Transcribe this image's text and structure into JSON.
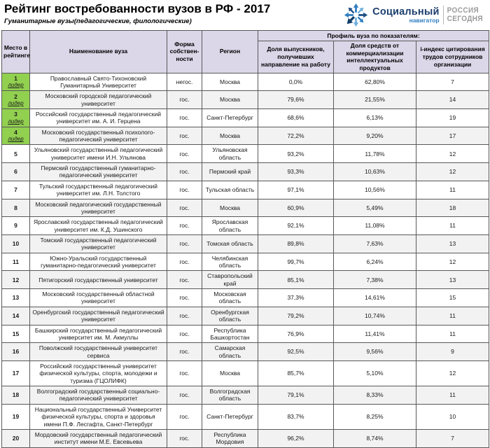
{
  "page": {
    "title": "Рейтинг востребованности вузов в РФ - 2017",
    "subtitle": "Гуманитарные вузы(педагогические, филологические)"
  },
  "logo": {
    "icon": "snowflake-arrows-icon",
    "brand_top": "Социальный",
    "brand_bottom": "навигатор",
    "agency_line1": "РОССИЯ",
    "agency_line2": "СЕГОДНЯ"
  },
  "colors": {
    "leader_green": "#92d050",
    "header_lavender": "#dbd6e8",
    "alt_row_gray": "#f2f2f2",
    "table_border": "#595959",
    "brand_navy": "#1c3e6e",
    "brand_blue": "#2e7dc0",
    "agency_gray": "#9b9b9b"
  },
  "table": {
    "headers": {
      "place": "Место в рейтинге",
      "name": "Наименование вуза",
      "ownership": "Форма собствен-ности",
      "region": "Регион",
      "profile_group": "Профиль вуза по показателям:",
      "metric1": "Доля выпускников, получивших направление на работу",
      "metric2": "Доля средств от коммерциализации интеллектуальных продуктов",
      "metric3": "i-индекс цитирования трудов сотрудников организации"
    },
    "leader_label": "лидер",
    "rows": [
      {
        "place": "1",
        "leader": true,
        "name": "Православный Свято-Тихоновский Гуманитарный Университет",
        "ownership": "негос.",
        "region": "Москва",
        "graduates_share": "0,0%",
        "commercialization_share": "62,80%",
        "i_index": "7"
      },
      {
        "place": "2",
        "leader": true,
        "name": "Московский городской педагогический университет",
        "ownership": "гос.",
        "region": "Москва",
        "graduates_share": "79,6%",
        "commercialization_share": "21,55%",
        "i_index": "14"
      },
      {
        "place": "3",
        "leader": true,
        "name": "Российский государственный педагогический университет им. А. И. Герцена",
        "ownership": "гос.",
        "region": "Санкт-Петербург",
        "graduates_share": "68,6%",
        "commercialization_share": "6,13%",
        "i_index": "19"
      },
      {
        "place": "4",
        "leader": true,
        "name": "Московский государственный психолого-педагогический университет",
        "ownership": "гос.",
        "region": "Москва",
        "graduates_share": "72,2%",
        "commercialization_share": "9,20%",
        "i_index": "17"
      },
      {
        "place": "5",
        "leader": false,
        "name": "Ульяновский государственный педагогический университет имени И.Н. Ульянова",
        "ownership": "гос.",
        "region": "Ульяновская область",
        "graduates_share": "93,2%",
        "commercialization_share": "11,78%",
        "i_index": "12"
      },
      {
        "place": "6",
        "leader": false,
        "name": "Пермский государственный гуманитарно-педагогический университет",
        "ownership": "гос.",
        "region": "Пермский край",
        "graduates_share": "93,3%",
        "commercialization_share": "10,63%",
        "i_index": "12"
      },
      {
        "place": "7",
        "leader": false,
        "name": "Тульский государственный педагогический университет им. Л.Н. Толстого",
        "ownership": "гос.",
        "region": "Тульская область",
        "graduates_share": "97,1%",
        "commercialization_share": "10,56%",
        "i_index": "11"
      },
      {
        "place": "8",
        "leader": false,
        "name": "Московский педагогический государственный университет",
        "ownership": "гос.",
        "region": "Москва",
        "graduates_share": "60,9%",
        "commercialization_share": "5,49%",
        "i_index": "18"
      },
      {
        "place": "9",
        "leader": false,
        "name": "Ярославский государственный педагогический университет им. К.Д. Ушинского",
        "ownership": "гос.",
        "region": "Ярославская область",
        "graduates_share": "92,1%",
        "commercialization_share": "11,08%",
        "i_index": "11"
      },
      {
        "place": "10",
        "leader": false,
        "name": "Томский государственный педагогический университет",
        "ownership": "гос.",
        "region": "Томская область",
        "graduates_share": "89,8%",
        "commercialization_share": "7,63%",
        "i_index": "13"
      },
      {
        "place": "11",
        "leader": false,
        "name": "Южно-Уральский государственный гуманитарно-педагогический университет",
        "ownership": "гос.",
        "region": "Челябинская область",
        "graduates_share": "99,7%",
        "commercialization_share": "6,24%",
        "i_index": "12"
      },
      {
        "place": "12",
        "leader": false,
        "name": "Пятигорский государственный университет",
        "ownership": "гос.",
        "region": "Ставропольский край",
        "graduates_share": "85,1%",
        "commercialization_share": "7,38%",
        "i_index": "13"
      },
      {
        "place": "13",
        "leader": false,
        "name": "Московский государственный областной университет",
        "ownership": "гос.",
        "region": "Московская область",
        "graduates_share": "37,3%",
        "commercialization_share": "14,61%",
        "i_index": "15"
      },
      {
        "place": "14",
        "leader": false,
        "name": "Оренбургский государственный педагогический университет",
        "ownership": "гос.",
        "region": "Оренбургская область",
        "graduates_share": "79,2%",
        "commercialization_share": "10,74%",
        "i_index": "11"
      },
      {
        "place": "15",
        "leader": false,
        "name": "Башкирский государственный педагогический университет им. М. Акмуллы",
        "ownership": "гос.",
        "region": "Республика Башкортостан",
        "graduates_share": "76,9%",
        "commercialization_share": "11,41%",
        "i_index": "11"
      },
      {
        "place": "16",
        "leader": false,
        "name": "Поволжский государственный университет сервиса",
        "ownership": "гос.",
        "region": "Самарская область",
        "graduates_share": "92,5%",
        "commercialization_share": "9,56%",
        "i_index": "9"
      },
      {
        "place": "17",
        "leader": false,
        "name": "Российский государственный университет физической культуры, спорта, молодежи и туризма (ГЦОЛИФК)",
        "ownership": "гос.",
        "region": "Москва",
        "graduates_share": "85,7%",
        "commercialization_share": "5,10%",
        "i_index": "12"
      },
      {
        "place": "18",
        "leader": false,
        "name": "Волгоградский государственный социально-педагогический университет",
        "ownership": "гос.",
        "region": "Волгоградская область",
        "graduates_share": "79,1%",
        "commercialization_share": "8,33%",
        "i_index": "11"
      },
      {
        "place": "19",
        "leader": false,
        "name": "Национальный государственный Университет физической культуры, спорта и здоровья имени П.Ф. Лесгафта, Санкт-Петербург",
        "ownership": "гос.",
        "region": "Санкт-Петербург",
        "graduates_share": "83,7%",
        "commercialization_share": "8,25%",
        "i_index": "10"
      },
      {
        "place": "20",
        "leader": false,
        "name": "Мордовский государственный педагогический институт имени М.Е. Евсевьева",
        "ownership": "гос.",
        "region": "Республика Мордовия",
        "graduates_share": "96,2%",
        "commercialization_share": "8,74%",
        "i_index": "7"
      }
    ]
  }
}
